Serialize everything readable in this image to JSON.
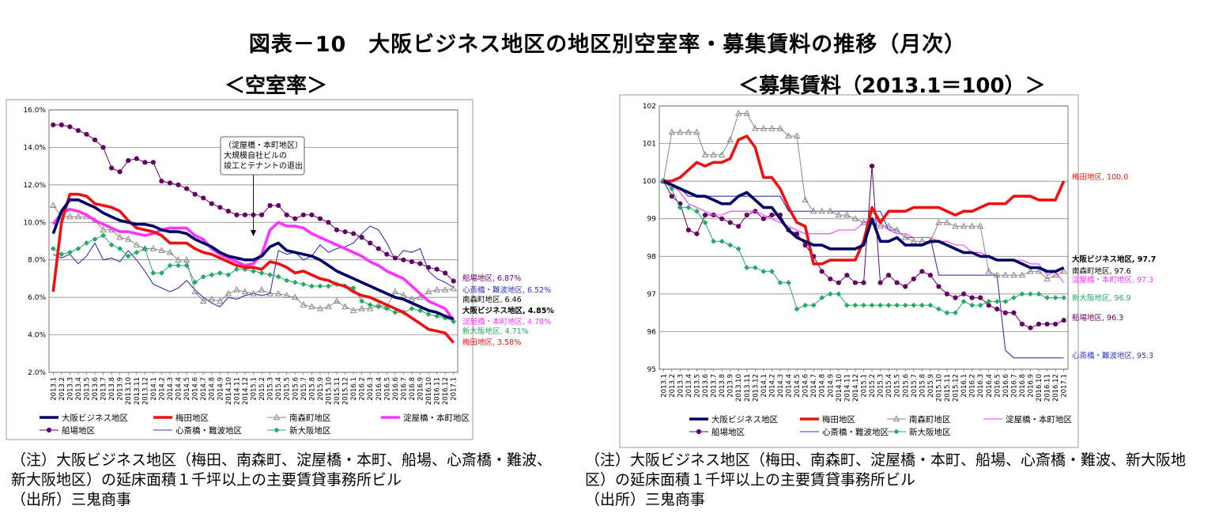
{
  "title": "図表－10　大阪ビジネス地区の地区別空室率・募集賃料の推移（月次）",
  "left_subtitle": "＜空室率＞",
  "right_subtitle": "＜募集賃料（2013.1＝100）＞",
  "x_categories": [
    "2013.1",
    "2013.2",
    "2013.3",
    "2013.4",
    "2013.5",
    "2013.6",
    "2013.7",
    "2013.8",
    "2013.9",
    "2013.10",
    "2013.11",
    "2013.12",
    "2014.1",
    "2014.2",
    "2014.3",
    "2014.4",
    "2014.5",
    "2014.6",
    "2014.7",
    "2014.8",
    "2014.9",
    "2014.10",
    "2014.11",
    "2014.12",
    "2015.1",
    "2015.2",
    "2015.3",
    "2015.4",
    "2015.5",
    "2015.6",
    "2015.7",
    "2015.8",
    "2015.9",
    "2015.10",
    "2015.11",
    "2015.12",
    "2016.1",
    "2016.2",
    "2016.3",
    "2016.4",
    "2016.5",
    "2016.6",
    "2016.7",
    "2016.8",
    "2016.9",
    "2016.10",
    "2016.11",
    "2016.12",
    "2017.1"
  ],
  "x_tick_labels": [
    "2013.1",
    "2013.2",
    "2013.3",
    "2013.4",
    "2013.5",
    "2013.6",
    "2013.7",
    "2013.8",
    "2013.9",
    "2013.10",
    "2013.11",
    "2013.12",
    "2014.1",
    "2014.2",
    "2014.3",
    "2014.4",
    "2014.5",
    "2014.6",
    "2014.7",
    "2014.8",
    "2014.9",
    "2014.10",
    "2014.11",
    "2014.12",
    "2015.1",
    "2015.2",
    "2015.3",
    "2015.4",
    "2015.5",
    "2015.6",
    "2015.7",
    "2015.8",
    "2015.9",
    "2015.10",
    "2015.11",
    "2015.12",
    "2016.1",
    "2016.2",
    "2016.3",
    "2016.4",
    "2016.5",
    "2016.6",
    "2016.7",
    "2016.8",
    "2016.9",
    "2016.10",
    "2016.11",
    "2016.12",
    "2017.1"
  ],
  "chart_data": [
    {
      "type": "line",
      "title": "＜空室率＞",
      "ylim": [
        2.0,
        16.0
      ],
      "yticks": [
        "2.0%",
        "4.0%",
        "6.0%",
        "8.0%",
        "10.0%",
        "12.0%",
        "14.0%",
        "16.0%"
      ],
      "annotation": [
        "（淀屋橋・本町地区）",
        "大規模自社ビルの",
        "竣工とテナントの退出"
      ],
      "annotation_month": "2015.1",
      "series": [
        {
          "name": "大阪ビジネス地区",
          "color": "#000066",
          "style": "thick",
          "end_label": "大阪ビジネス地区, 4.85%",
          "values": [
            9.4,
            10.6,
            11.2,
            11.2,
            11.0,
            10.8,
            10.5,
            10.3,
            10.1,
            10.0,
            9.9,
            9.9,
            9.8,
            9.6,
            9.5,
            9.5,
            9.4,
            9.1,
            8.9,
            8.7,
            8.4,
            8.2,
            8.1,
            8.0,
            8.0,
            8.2,
            8.7,
            8.9,
            8.5,
            8.4,
            8.3,
            8.2,
            8.0,
            7.7,
            7.4,
            7.2,
            7.0,
            6.8,
            6.6,
            6.4,
            6.2,
            6.0,
            5.9,
            5.7,
            5.5,
            5.3,
            5.2,
            5.0,
            4.85
          ]
        },
        {
          "name": "梅田地区",
          "color": "#ee1111",
          "style": "thick",
          "end_label": "梅田地区, 3.58%",
          "values": [
            6.3,
            10.0,
            11.5,
            11.5,
            11.4,
            11.0,
            10.9,
            10.8,
            10.6,
            10.1,
            9.7,
            9.6,
            9.5,
            9.3,
            8.9,
            8.9,
            8.9,
            8.6,
            8.4,
            8.3,
            8.1,
            7.9,
            7.7,
            7.6,
            7.6,
            7.5,
            7.9,
            7.8,
            7.6,
            7.3,
            7.4,
            7.2,
            7.0,
            6.9,
            6.7,
            6.6,
            6.3,
            6.1,
            6.0,
            5.8,
            5.6,
            5.4,
            5.2,
            4.9,
            4.6,
            4.3,
            4.2,
            4.1,
            3.58
          ]
        },
        {
          "name": "南森町地区",
          "color": "#888888",
          "style": "triangle",
          "end_label": "南森町地区, 6.46",
          "values": [
            10.9,
            10.3,
            10.3,
            10.3,
            10.3,
            10.1,
            9.6,
            9.6,
            9.2,
            9.1,
            8.8,
            8.6,
            8.6,
            8.5,
            8.4,
            8.0,
            8.0,
            6.3,
            5.8,
            5.9,
            5.8,
            6.2,
            6.4,
            6.3,
            6.2,
            6.4,
            6.2,
            6.2,
            6.1,
            6.0,
            5.6,
            5.5,
            5.4,
            5.5,
            5.8,
            5.5,
            5.3,
            5.4,
            5.4,
            5.6,
            5.5,
            6.3,
            6.1,
            5.9,
            6.0,
            6.3,
            6.4,
            6.4,
            6.46
          ]
        },
        {
          "name": "淀屋橋・本町地区",
          "color": "#ff33ff",
          "style": "thick",
          "end_label": "淀屋橋・本町地区, 4.78%",
          "values": [
            9.9,
            10.5,
            10.7,
            10.6,
            10.4,
            10.1,
            9.9,
            9.7,
            9.5,
            9.5,
            9.4,
            9.3,
            9.4,
            9.6,
            9.7,
            9.7,
            9.7,
            9.3,
            9.1,
            8.6,
            8.3,
            8.1,
            7.9,
            7.7,
            7.8,
            8.3,
            9.6,
            10.0,
            9.8,
            9.8,
            9.7,
            9.4,
            9.2,
            9.0,
            8.8,
            8.6,
            8.4,
            8.2,
            7.9,
            7.7,
            7.4,
            7.2,
            7.0,
            6.6,
            6.2,
            5.8,
            5.6,
            5.4,
            4.78
          ]
        },
        {
          "name": "船場地区",
          "color": "#660066",
          "style": "circle",
          "end_label": "船場地区, 6.87%",
          "values": [
            15.2,
            15.2,
            15.1,
            14.9,
            14.7,
            14.4,
            14.0,
            12.9,
            12.7,
            13.3,
            13.4,
            13.2,
            13.2,
            12.2,
            12.1,
            12.0,
            11.8,
            11.5,
            11.3,
            11.0,
            10.8,
            10.6,
            10.4,
            10.4,
            10.4,
            10.4,
            10.9,
            10.9,
            10.4,
            10.2,
            10.4,
            10.4,
            10.2,
            10.0,
            9.6,
            9.5,
            9.4,
            9.2,
            8.9,
            8.6,
            8.3,
            8.1,
            8.0,
            7.9,
            7.8,
            7.6,
            7.5,
            7.3,
            6.87
          ]
        },
        {
          "name": "心斎橋・難波地区",
          "color": "#3333bb",
          "style": "thin",
          "end_label": "心斎橋・難波地区, 6.52%",
          "values": [
            8.3,
            8.1,
            8.3,
            7.8,
            8.2,
            8.9,
            8.0,
            8.1,
            7.9,
            8.5,
            8.0,
            7.4,
            6.7,
            6.5,
            6.3,
            6.5,
            6.9,
            6.4,
            6.0,
            5.7,
            5.5,
            6.0,
            5.9,
            6.1,
            6.2,
            6.1,
            6.2,
            8.5,
            8.3,
            8.4,
            8.0,
            8.2,
            8.8,
            8.4,
            8.6,
            8.7,
            8.9,
            9.4,
            9.8,
            9.6,
            8.9,
            8.0,
            8.5,
            8.4,
            8.6,
            7.4,
            7.0,
            6.8,
            6.52
          ]
        },
        {
          "name": "新大阪地区",
          "color": "#22aa66",
          "style": "diamond",
          "end_label": "新大阪地区, 4.71%",
          "values": [
            8.6,
            8.3,
            8.4,
            8.6,
            8.9,
            9.1,
            9.3,
            8.8,
            8.6,
            8.2,
            8.4,
            8.6,
            7.3,
            7.3,
            7.7,
            7.7,
            7.7,
            6.8,
            7.1,
            7.2,
            7.3,
            7.2,
            7.5,
            7.5,
            7.4,
            7.3,
            7.2,
            7.1,
            6.9,
            6.8,
            6.7,
            6.6,
            6.6,
            6.6,
            6.7,
            6.6,
            6.5,
            5.8,
            5.6,
            5.5,
            5.4,
            5.2,
            5.2,
            5.4,
            5.3,
            5.1,
            5.0,
            4.9,
            4.71
          ]
        }
      ]
    },
    {
      "type": "line",
      "title": "＜募集賃料（2013.1＝100）＞",
      "ylim": [
        95,
        102
      ],
      "yticks": [
        "95",
        "96",
        "97",
        "98",
        "99",
        "100",
        "101",
        "102"
      ],
      "series": [
        {
          "name": "大阪ビジネス地区",
          "color": "#000066",
          "style": "thick",
          "end_label": "大阪ビジネス地区, 97.7",
          "values": [
            100.0,
            99.9,
            99.8,
            99.7,
            99.6,
            99.6,
            99.5,
            99.4,
            99.4,
            99.6,
            99.7,
            99.5,
            99.3,
            99.3,
            99.0,
            98.7,
            98.5,
            98.4,
            98.3,
            98.3,
            98.2,
            98.2,
            98.2,
            98.2,
            98.3,
            99.0,
            98.4,
            98.4,
            98.5,
            98.3,
            98.3,
            98.3,
            98.4,
            98.4,
            98.3,
            98.2,
            98.1,
            98.1,
            98.0,
            98.0,
            97.9,
            97.9,
            97.9,
            97.8,
            97.7,
            97.7,
            97.6,
            97.6,
            97.7
          ]
        },
        {
          "name": "梅田地区",
          "color": "#ee1111",
          "style": "thick",
          "end_label": "梅田地区, 100.0",
          "values": [
            100.0,
            100.0,
            100.1,
            100.3,
            100.5,
            100.4,
            100.5,
            100.5,
            100.6,
            101.1,
            101.2,
            100.9,
            100.1,
            100.1,
            99.8,
            99.3,
            98.9,
            98.8,
            97.8,
            97.8,
            97.9,
            97.9,
            97.9,
            97.9,
            98.4,
            99.3,
            98.9,
            99.2,
            99.2,
            99.2,
            99.3,
            99.3,
            99.3,
            99.3,
            99.2,
            99.1,
            99.2,
            99.2,
            99.3,
            99.4,
            99.4,
            99.4,
            99.6,
            99.6,
            99.6,
            99.5,
            99.5,
            99.5,
            100.0
          ]
        },
        {
          "name": "南森町地区",
          "color": "#888888",
          "style": "triangle",
          "end_label": "南森町地区, 97.6",
          "values": [
            100.0,
            101.3,
            101.3,
            101.3,
            101.3,
            100.7,
            100.7,
            100.7,
            101.1,
            101.8,
            101.8,
            101.4,
            101.4,
            101.4,
            101.4,
            101.2,
            101.2,
            99.5,
            99.2,
            99.2,
            99.2,
            99.1,
            99.1,
            99.0,
            98.9,
            98.9,
            98.8,
            98.8,
            98.7,
            98.5,
            98.4,
            98.4,
            98.4,
            98.9,
            98.9,
            98.8,
            98.8,
            98.8,
            98.8,
            97.6,
            97.5,
            97.5,
            97.5,
            97.5,
            97.6,
            97.6,
            97.4,
            97.5,
            97.6
          ]
        },
        {
          "name": "淀屋橋・本町地区",
          "color": "#ff33ff",
          "style": "thin",
          "end_label": "淀屋橋・本町地区, 97.3",
          "values": [
            100.0,
            99.9,
            99.7,
            99.4,
            99.3,
            99.2,
            99.1,
            99.1,
            99.2,
            99.2,
            99.2,
            99.2,
            99.1,
            99.0,
            98.9,
            98.8,
            98.7,
            98.6,
            98.6,
            98.6,
            98.6,
            98.7,
            98.7,
            98.7,
            98.9,
            99.0,
            98.9,
            98.7,
            98.6,
            98.6,
            98.5,
            98.5,
            98.5,
            98.4,
            98.4,
            98.3,
            98.3,
            98.1,
            98.1,
            98.0,
            97.9,
            97.9,
            97.9,
            97.9,
            97.8,
            97.8,
            97.5,
            97.6,
            97.3
          ]
        },
        {
          "name": "船場地区",
          "color": "#660066",
          "style": "circle",
          "end_label": "船場地区, 96.3",
          "values": [
            100.0,
            99.6,
            99.4,
            98.7,
            98.6,
            99.1,
            99.1,
            99.0,
            98.9,
            98.8,
            99.1,
            99.2,
            99.0,
            99.1,
            99.1,
            98.7,
            98.6,
            98.3,
            98.0,
            97.6,
            97.4,
            97.3,
            97.5,
            97.3,
            97.3,
            100.4,
            97.3,
            97.5,
            97.3,
            97.2,
            97.4,
            97.6,
            97.5,
            97.2,
            97.0,
            96.9,
            97.0,
            96.9,
            96.9,
            96.7,
            96.6,
            96.5,
            96.5,
            96.2,
            96.1,
            96.2,
            96.2,
            96.2,
            96.3
          ]
        },
        {
          "name": "心斎橋・難波地区",
          "color": "#3333bb",
          "style": "thin",
          "end_label": "心斎橋・難波地区, 95.3",
          "values": [
            100.0,
            99.9,
            99.8,
            99.6,
            99.6,
            99.6,
            99.6,
            99.6,
            99.6,
            99.6,
            99.6,
            99.6,
            99.6,
            99.6,
            99.6,
            99.2,
            99.2,
            99.2,
            99.2,
            99.2,
            99.2,
            99.2,
            99.2,
            99.2,
            99.2,
            99.2,
            99.2,
            98.7,
            98.7,
            98.5,
            98.5,
            98.5,
            98.5,
            97.5,
            97.5,
            97.5,
            97.5,
            97.5,
            97.5,
            97.5,
            97.5,
            95.5,
            95.3,
            95.3,
            95.3,
            95.3,
            95.3,
            95.3,
            95.3
          ]
        },
        {
          "name": "新大阪地区",
          "color": "#22aa66",
          "style": "diamond",
          "end_label": "新大阪地区, 96.9",
          "values": [
            100.0,
            99.8,
            99.3,
            99.3,
            99.2,
            98.9,
            98.4,
            98.4,
            98.3,
            98.2,
            97.7,
            97.7,
            97.6,
            97.6,
            97.3,
            97.3,
            96.6,
            96.7,
            96.7,
            96.9,
            97.0,
            97.0,
            96.7,
            96.7,
            96.7,
            96.7,
            96.7,
            96.7,
            96.7,
            96.7,
            96.7,
            96.7,
            96.7,
            96.6,
            96.5,
            96.5,
            96.8,
            96.7,
            96.7,
            96.8,
            96.8,
            96.8,
            96.9,
            97.0,
            97.0,
            97.0,
            96.9,
            96.9,
            96.9
          ]
        }
      ]
    }
  ],
  "legend_left": [
    "大阪ビジネス地区",
    "梅田地区",
    "南森町地区",
    "淀屋橋・本町地区",
    "船場地区",
    "心斎橋・難波地区",
    "新大阪地区"
  ],
  "legend_right": [
    "大阪ビジネス地区",
    "梅田地区",
    "南森町地区",
    "淀屋橋・本町地区",
    "船場地区",
    "心斎橋・難波地区",
    "新大阪地区"
  ],
  "notes_left": [
    "（注）大阪ビジネス地区（梅田、南森町、淀屋橋・本町、船場、心斎橋・難波、",
    "新大阪地区）の延床面積１千坪以上の主要賃貸事務所ビル",
    "（出所）三鬼商事"
  ],
  "notes_right": [
    "（注）大阪ビジネス地区（梅田、南森町、淀屋橋・本町、船場、心斎橋・難波、新大阪地",
    "区）の延床面積１千坪以上の主要賃貸事務所ビル",
    "（出所）三鬼商事"
  ]
}
